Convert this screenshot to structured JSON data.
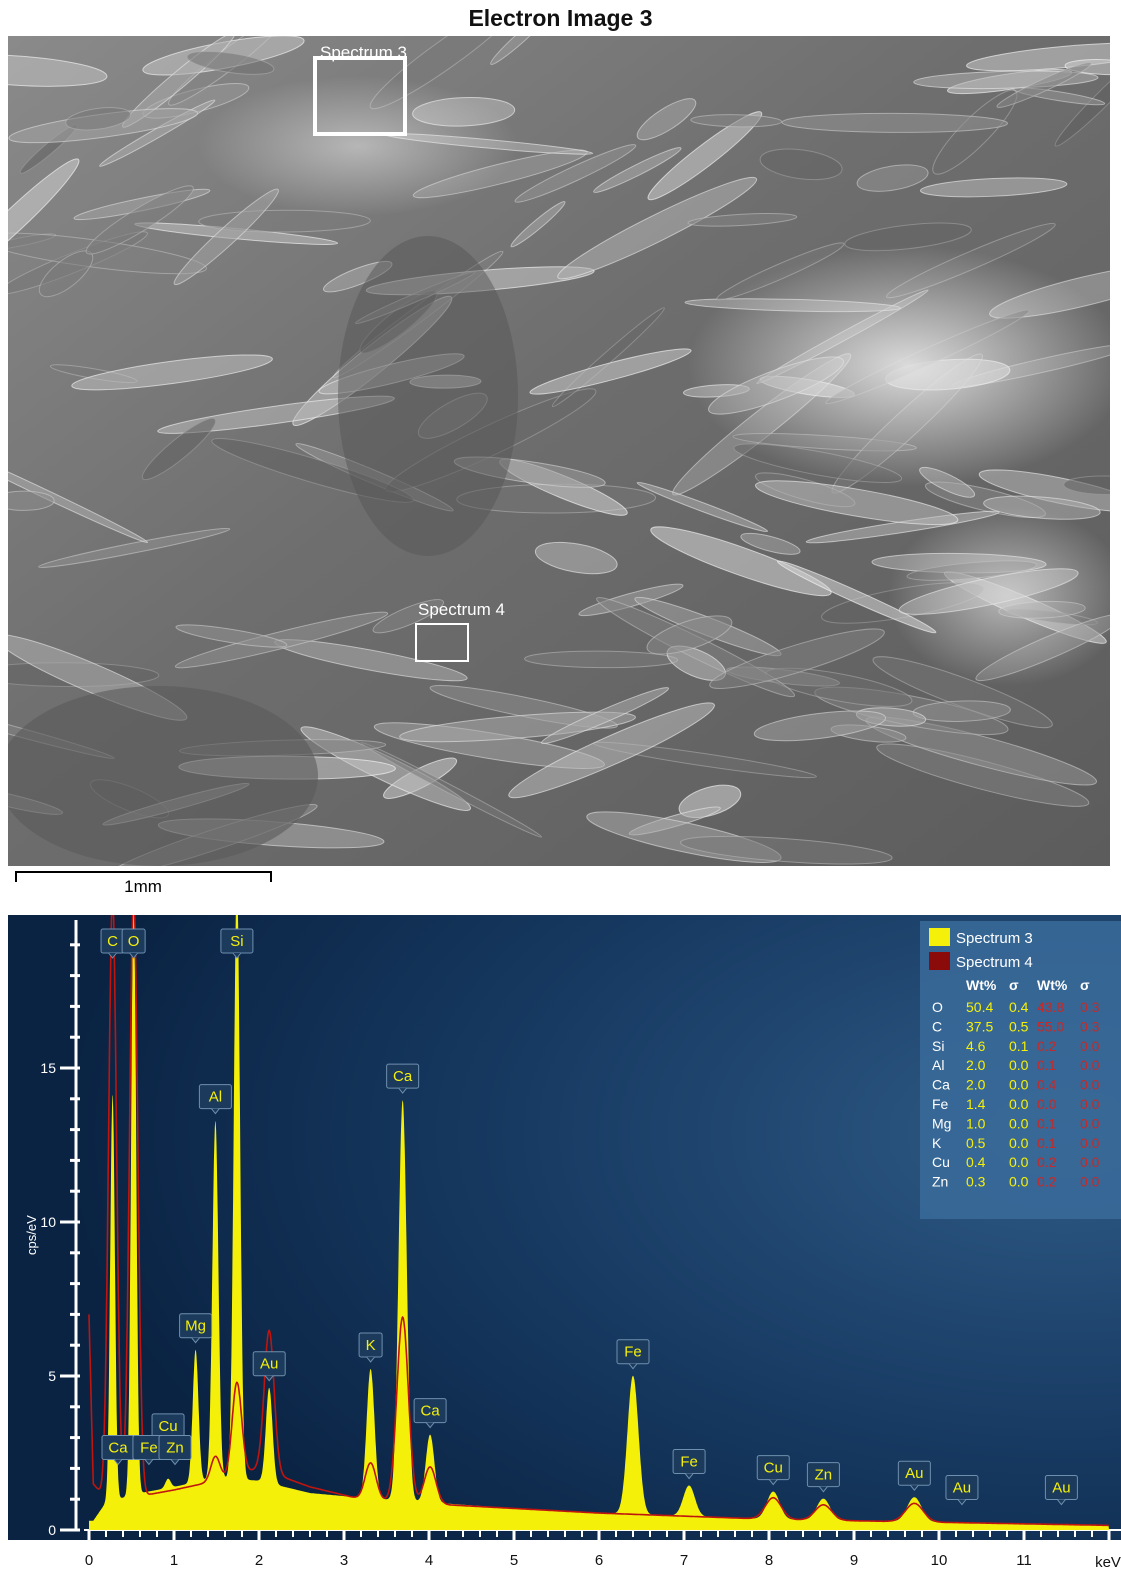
{
  "image": {
    "title": "Electron Image 3",
    "scale_bar_label": "1mm",
    "boxes": [
      {
        "label": "Spectrum 3"
      },
      {
        "label": "Spectrum 4"
      }
    ]
  },
  "colors": {
    "spectrum3": "#f5f00a",
    "spectrum4": "#8b0a0a",
    "plot_bg_dark": "#0a2343",
    "plot_bg_light": "#2e5a85",
    "label_text": "#f5f00a"
  },
  "chart_data": {
    "type": "area",
    "xlabel": "keV",
    "ylabel": "cps/eV",
    "xlim": [
      -0.15,
      12
    ],
    "ylim": [
      0,
      19.5
    ],
    "x_ticks": [
      0,
      1,
      2,
      3,
      4,
      5,
      6,
      7,
      8,
      9,
      10,
      11
    ],
    "y_ticks": [
      0,
      5,
      10,
      15
    ],
    "legend_position": "top-right",
    "series": [
      {
        "name": "Spectrum 3",
        "baseline": [
          [
            0.05,
            0.3
          ],
          [
            0.2,
            0.9
          ],
          [
            0.6,
            1.2
          ],
          [
            1.0,
            1.4
          ],
          [
            1.5,
            1.7
          ],
          [
            2.0,
            1.6
          ],
          [
            2.6,
            1.2
          ],
          [
            3.2,
            1.05
          ],
          [
            4.0,
            0.9
          ],
          [
            5.0,
            0.7
          ],
          [
            6.0,
            0.55
          ],
          [
            7.0,
            0.45
          ],
          [
            8.0,
            0.35
          ],
          [
            9.0,
            0.3
          ],
          [
            10.0,
            0.25
          ],
          [
            11.0,
            0.2
          ],
          [
            12.0,
            0.15
          ]
        ],
        "peaks": [
          {
            "element": "C",
            "keV": 0.277,
            "height": 13.2
          },
          {
            "element": "O",
            "keV": 0.525,
            "height": 19.5
          },
          {
            "element": "Cu",
            "keV": 0.93,
            "height": 0.3
          },
          {
            "element": "Mg",
            "keV": 1.254,
            "height": 4.3
          },
          {
            "element": "Al",
            "keV": 1.487,
            "height": 11.6
          },
          {
            "element": "Si",
            "keV": 1.74,
            "height": 19.5
          },
          {
            "element": "Au",
            "keV": 2.12,
            "height": 3.1
          },
          {
            "element": "K",
            "keV": 3.313,
            "height": 4.2
          },
          {
            "element": "Ca",
            "keV": 3.69,
            "height": 13.0
          },
          {
            "element": "Ca",
            "keV": 4.013,
            "height": 2.2
          },
          {
            "element": "Fe",
            "keV": 6.4,
            "height": 4.5
          },
          {
            "element": "Fe",
            "keV": 7.06,
            "height": 1.0
          },
          {
            "element": "Cu",
            "keV": 8.05,
            "height": 0.9
          },
          {
            "element": "Zn",
            "keV": 8.64,
            "height": 0.7
          },
          {
            "element": "Au",
            "keV": 9.71,
            "height": 0.8
          }
        ]
      },
      {
        "name": "Spectrum 4",
        "baseline": [
          [
            0.0,
            7.0
          ],
          [
            0.05,
            1.5
          ],
          [
            0.2,
            1.0
          ],
          [
            0.6,
            1.1
          ],
          [
            1.0,
            1.3
          ],
          [
            1.5,
            1.6
          ],
          [
            2.0,
            2.0
          ],
          [
            2.6,
            1.4
          ],
          [
            3.2,
            1.0
          ],
          [
            4.0,
            0.85
          ],
          [
            5.0,
            0.7
          ],
          [
            6.0,
            0.55
          ],
          [
            7.0,
            0.45
          ],
          [
            8.0,
            0.35
          ],
          [
            9.0,
            0.3
          ],
          [
            10.0,
            0.25
          ],
          [
            11.0,
            0.2
          ],
          [
            12.0,
            0.15
          ]
        ],
        "peaks": [
          {
            "element": "C",
            "keV": 0.277,
            "height": 19.5
          },
          {
            "element": "O",
            "keV": 0.525,
            "height": 19.5
          },
          {
            "element": "Al",
            "keV": 1.487,
            "height": 0.8
          },
          {
            "element": "Si",
            "keV": 1.74,
            "height": 3.0
          },
          {
            "element": "Au",
            "keV": 2.12,
            "height": 4.6
          },
          {
            "element": "K",
            "keV": 3.313,
            "height": 1.2
          },
          {
            "element": "Ca",
            "keV": 3.69,
            "height": 6.0
          },
          {
            "element": "Ca",
            "keV": 4.013,
            "height": 1.2
          },
          {
            "element": "Cu",
            "keV": 8.05,
            "height": 0.7
          },
          {
            "element": "Zn",
            "keV": 8.64,
            "height": 0.5
          },
          {
            "element": "Au",
            "keV": 9.71,
            "height": 0.6
          }
        ]
      }
    ],
    "peak_labels": [
      {
        "element": "C",
        "keV": 0.277
      },
      {
        "element": "O",
        "keV": 0.525
      },
      {
        "element": "Si",
        "keV": 1.74
      },
      {
        "element": "Al",
        "keV": 1.487
      },
      {
        "element": "Ca",
        "keV": 3.69
      },
      {
        "element": "Mg",
        "keV": 1.254
      },
      {
        "element": "Au",
        "keV": 2.12
      },
      {
        "element": "K",
        "keV": 3.313
      },
      {
        "element": "Fe",
        "keV": 6.4
      },
      {
        "element": "Cu",
        "keV": 0.93
      },
      {
        "element": "Ca",
        "keV": 4.013
      },
      {
        "element": "Ca",
        "keV": 0.341
      },
      {
        "element": "Fe",
        "keV": 0.705
      },
      {
        "element": "Zn",
        "keV": 1.012
      },
      {
        "element": "Fe",
        "keV": 7.06
      },
      {
        "element": "Cu",
        "keV": 8.05
      },
      {
        "element": "Zn",
        "keV": 8.64
      },
      {
        "element": "Au",
        "keV": 9.71
      },
      {
        "element": "Au",
        "keV": 10.27
      },
      {
        "element": "Au",
        "keV": 11.44
      }
    ],
    "table": {
      "columns": [
        "",
        "Wt%",
        "σ",
        "Wt%",
        "σ"
      ],
      "rows": [
        {
          "element": "O",
          "s3_wt": "50.4",
          "s3_sigma": "0.4",
          "s4_wt": "43.8",
          "s4_sigma": "0.3"
        },
        {
          "element": "C",
          "s3_wt": "37.5",
          "s3_sigma": "0.5",
          "s4_wt": "55.0",
          "s4_sigma": "0.3"
        },
        {
          "element": "Si",
          "s3_wt": "4.6",
          "s3_sigma": "0.1",
          "s4_wt": "0.2",
          "s4_sigma": "0.0"
        },
        {
          "element": "Al",
          "s3_wt": "2.0",
          "s3_sigma": "0.0",
          "s4_wt": "0.1",
          "s4_sigma": "0.0"
        },
        {
          "element": "Ca",
          "s3_wt": "2.0",
          "s3_sigma": "0.0",
          "s4_wt": "0.4",
          "s4_sigma": "0.0"
        },
        {
          "element": "Fe",
          "s3_wt": "1.4",
          "s3_sigma": "0.0",
          "s4_wt": "0.0",
          "s4_sigma": "0.0"
        },
        {
          "element": "Mg",
          "s3_wt": "1.0",
          "s3_sigma": "0.0",
          "s4_wt": "0.1",
          "s4_sigma": "0.0"
        },
        {
          "element": "K",
          "s3_wt": "0.5",
          "s3_sigma": "0.0",
          "s4_wt": "0.1",
          "s4_sigma": "0.0"
        },
        {
          "element": "Cu",
          "s3_wt": "0.4",
          "s3_sigma": "0.0",
          "s4_wt": "0.2",
          "s4_sigma": "0.0"
        },
        {
          "element": "Zn",
          "s3_wt": "0.3",
          "s3_sigma": "0.0",
          "s4_wt": "0.2",
          "s4_sigma": "0.0"
        }
      ]
    }
  }
}
